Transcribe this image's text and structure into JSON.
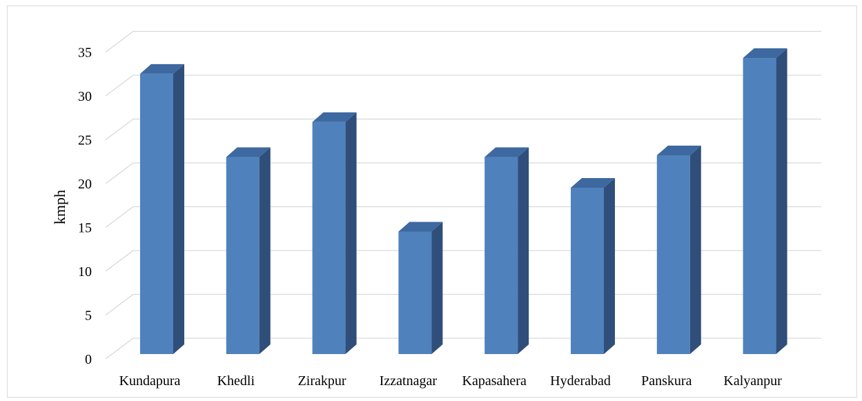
{
  "chart_data": {
    "type": "bar",
    "style": "3d-column",
    "categories": [
      "Kundapura",
      "Khedli",
      "Zirakpur",
      "Izzatnagar",
      "Kapasahera",
      "Hyderabad",
      "Panskura",
      "Kalyanpur"
    ],
    "values": [
      33,
      23.5,
      27.5,
      15,
      23.5,
      20,
      23.7,
      34.8
    ],
    "title": "",
    "xlabel": "",
    "ylabel": "kmph",
    "ylim": [
      0,
      35
    ],
    "yticks": [
      0,
      5,
      10,
      15,
      20,
      25,
      30,
      35
    ],
    "grid": true,
    "legend": "none",
    "colors": {
      "bar_front": "#4f81bd",
      "bar_side": "#2f4f7a",
      "bar_top": "#3e68a0",
      "grid": "#d9d9d9"
    }
  }
}
